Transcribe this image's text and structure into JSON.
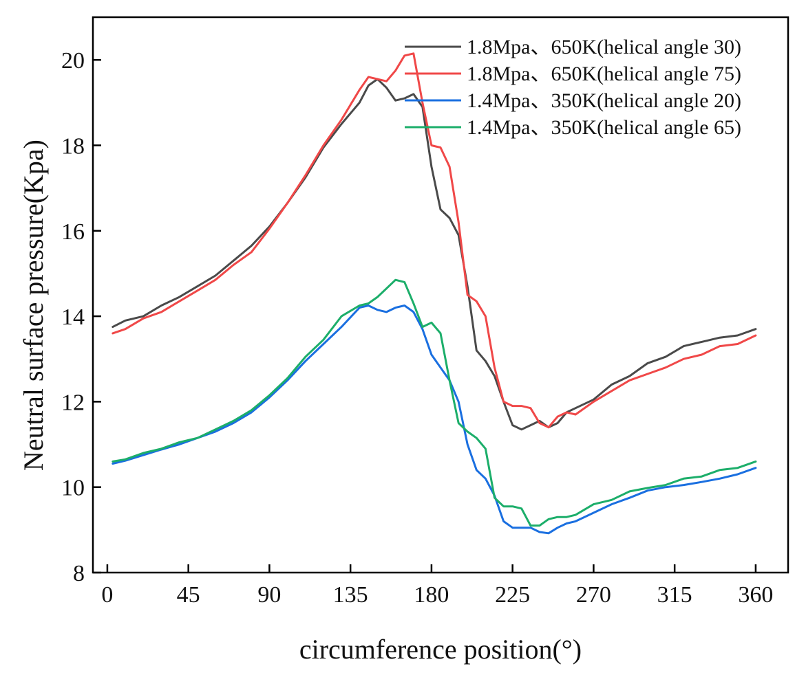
{
  "chart_data": {
    "type": "line",
    "title": "",
    "xlabel": "circumference position(°)",
    "ylabel": "Neutral surface pressure(Kpa)",
    "xlim": [
      -8,
      378
    ],
    "ylim": [
      8,
      21
    ],
    "xticks": [
      0,
      45,
      90,
      135,
      180,
      225,
      270,
      315,
      360
    ],
    "yticks": [
      8,
      10,
      12,
      14,
      16,
      18,
      20
    ],
    "grid": false,
    "legend_position": "top-right",
    "series": [
      {
        "name": "1.8Mpa、650K(helical angle 30)",
        "color": "#4a4a4a",
        "x": [
          3,
          10,
          20,
          30,
          40,
          50,
          60,
          70,
          80,
          90,
          100,
          110,
          120,
          130,
          140,
          145,
          150,
          155,
          160,
          165,
          170,
          175,
          180,
          185,
          190,
          195,
          200,
          205,
          210,
          215,
          220,
          225,
          230,
          235,
          240,
          245,
          250,
          255,
          260,
          270,
          280,
          290,
          300,
          310,
          320,
          330,
          340,
          350,
          360
        ],
        "y": [
          13.75,
          13.9,
          14.0,
          14.25,
          14.45,
          14.7,
          14.95,
          15.3,
          15.65,
          16.1,
          16.65,
          17.25,
          17.95,
          18.5,
          19.0,
          19.4,
          19.55,
          19.35,
          19.05,
          19.1,
          19.2,
          18.9,
          17.5,
          16.5,
          16.3,
          15.9,
          14.7,
          13.2,
          12.95,
          12.6,
          12.0,
          11.45,
          11.35,
          11.45,
          11.55,
          11.4,
          11.5,
          11.75,
          11.85,
          12.05,
          12.4,
          12.6,
          12.9,
          13.05,
          13.3,
          13.4,
          13.5,
          13.55,
          13.7
        ]
      },
      {
        "name": "1.8Mpa、650K(helical angle 75)",
        "color": "#f04848",
        "x": [
          3,
          10,
          20,
          30,
          40,
          50,
          60,
          70,
          80,
          90,
          100,
          110,
          120,
          130,
          140,
          145,
          150,
          155,
          160,
          165,
          170,
          175,
          180,
          185,
          190,
          195,
          200,
          205,
          210,
          215,
          220,
          225,
          230,
          235,
          240,
          245,
          250,
          255,
          260,
          270,
          280,
          290,
          300,
          310,
          320,
          330,
          340,
          350,
          360
        ],
        "y": [
          13.6,
          13.7,
          13.95,
          14.1,
          14.35,
          14.6,
          14.85,
          15.2,
          15.5,
          16.05,
          16.65,
          17.3,
          18.0,
          18.6,
          19.3,
          19.6,
          19.55,
          19.5,
          19.75,
          20.1,
          20.15,
          19.0,
          18.0,
          17.95,
          17.5,
          16.2,
          14.5,
          14.35,
          14.0,
          12.8,
          12.0,
          11.9,
          11.9,
          11.85,
          11.5,
          11.4,
          11.65,
          11.75,
          11.7,
          12.0,
          12.25,
          12.5,
          12.65,
          12.8,
          13.0,
          13.1,
          13.3,
          13.35,
          13.55
        ]
      },
      {
        "name": "1.4Mpa、350K(helical angle 20)",
        "color": "#1a6fe0",
        "x": [
          3,
          10,
          20,
          30,
          40,
          50,
          60,
          70,
          80,
          90,
          100,
          110,
          120,
          130,
          140,
          145,
          150,
          155,
          160,
          165,
          170,
          175,
          180,
          185,
          190,
          195,
          200,
          205,
          210,
          215,
          220,
          225,
          230,
          235,
          240,
          245,
          250,
          255,
          260,
          270,
          280,
          290,
          300,
          310,
          320,
          330,
          340,
          350,
          360
        ],
        "y": [
          10.55,
          10.62,
          10.75,
          10.88,
          11.0,
          11.15,
          11.3,
          11.5,
          11.75,
          12.1,
          12.5,
          12.95,
          13.35,
          13.75,
          14.2,
          14.25,
          14.15,
          14.1,
          14.2,
          14.25,
          14.1,
          13.7,
          13.1,
          12.8,
          12.5,
          12.0,
          11.0,
          10.4,
          10.2,
          9.8,
          9.2,
          9.05,
          9.05,
          9.05,
          8.95,
          8.92,
          9.05,
          9.15,
          9.2,
          9.4,
          9.6,
          9.75,
          9.92,
          10.0,
          10.05,
          10.12,
          10.2,
          10.3,
          10.45
        ]
      },
      {
        "name": "1.4Mpa、350K(helical angle 65)",
        "color": "#1cae6a",
        "x": [
          3,
          10,
          20,
          30,
          40,
          50,
          60,
          70,
          80,
          90,
          100,
          110,
          120,
          130,
          140,
          145,
          150,
          155,
          160,
          165,
          170,
          175,
          180,
          185,
          190,
          195,
          200,
          205,
          210,
          215,
          220,
          225,
          230,
          235,
          240,
          245,
          250,
          255,
          260,
          270,
          280,
          290,
          300,
          310,
          320,
          330,
          340,
          350,
          360
        ],
        "y": [
          10.6,
          10.65,
          10.8,
          10.9,
          11.05,
          11.15,
          11.35,
          11.55,
          11.8,
          12.15,
          12.55,
          13.05,
          13.45,
          14.0,
          14.25,
          14.3,
          14.45,
          14.65,
          14.85,
          14.8,
          14.3,
          13.75,
          13.85,
          13.6,
          12.5,
          11.5,
          11.3,
          11.15,
          10.9,
          9.75,
          9.55,
          9.55,
          9.5,
          9.1,
          9.1,
          9.25,
          9.3,
          9.3,
          9.35,
          9.6,
          9.7,
          9.9,
          9.98,
          10.05,
          10.2,
          10.25,
          10.4,
          10.45,
          10.6
        ]
      }
    ]
  }
}
